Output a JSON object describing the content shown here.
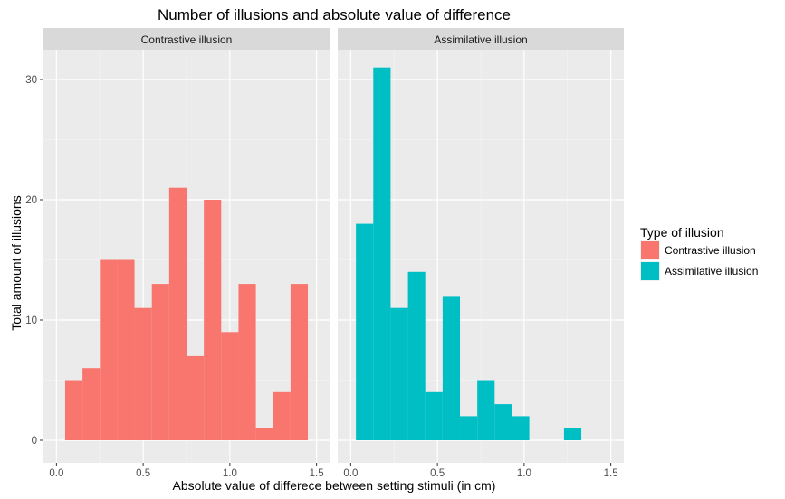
{
  "chart_data": {
    "type": "bar",
    "title": "Number of illusions and absolute value of difference",
    "xlabel": "Absolute value of differece between setting stimuli (in cm)",
    "ylabel": "Total amount of illusions",
    "xlim": [
      0,
      1.5
    ],
    "ylim": [
      0,
      32
    ],
    "x_ticks": [
      0.0,
      0.5,
      1.0,
      1.5
    ],
    "x_tick_labels": [
      "0.0",
      "0.5",
      "1.0",
      "1.5"
    ],
    "y_ticks": [
      0,
      10,
      20,
      30
    ],
    "y_tick_labels": [
      "0",
      "10",
      "20",
      "30"
    ],
    "grid": true,
    "bin_width": 0.1,
    "legend": {
      "title": "Type of illusion",
      "position": "right",
      "entries": [
        {
          "label": "Contrastive illusion",
          "color": "#F8766D"
        },
        {
          "label": "Assimilative illusion",
          "color": "#00BFC4"
        }
      ]
    },
    "panels": [
      {
        "strip": "Contrastive illusion",
        "color": "#F8766D",
        "bin_centers": [
          0.1,
          0.2,
          0.3,
          0.4,
          0.5,
          0.6,
          0.7,
          0.8,
          0.9,
          1.0,
          1.1,
          1.2,
          1.3,
          1.4
        ],
        "counts": [
          5,
          6,
          15,
          15,
          11,
          13,
          21,
          7,
          20,
          9,
          13,
          1,
          4,
          13
        ]
      },
      {
        "strip": "Assimilative illusion",
        "color": "#00BFC4",
        "bin_centers": [
          0.08,
          0.18,
          0.28,
          0.38,
          0.48,
          0.58,
          0.68,
          0.78,
          0.88,
          0.98,
          1.08,
          1.18,
          1.28
        ],
        "counts": [
          18,
          31,
          11,
          14,
          4,
          12,
          2,
          5,
          3,
          2,
          0,
          0,
          1
        ]
      }
    ]
  }
}
